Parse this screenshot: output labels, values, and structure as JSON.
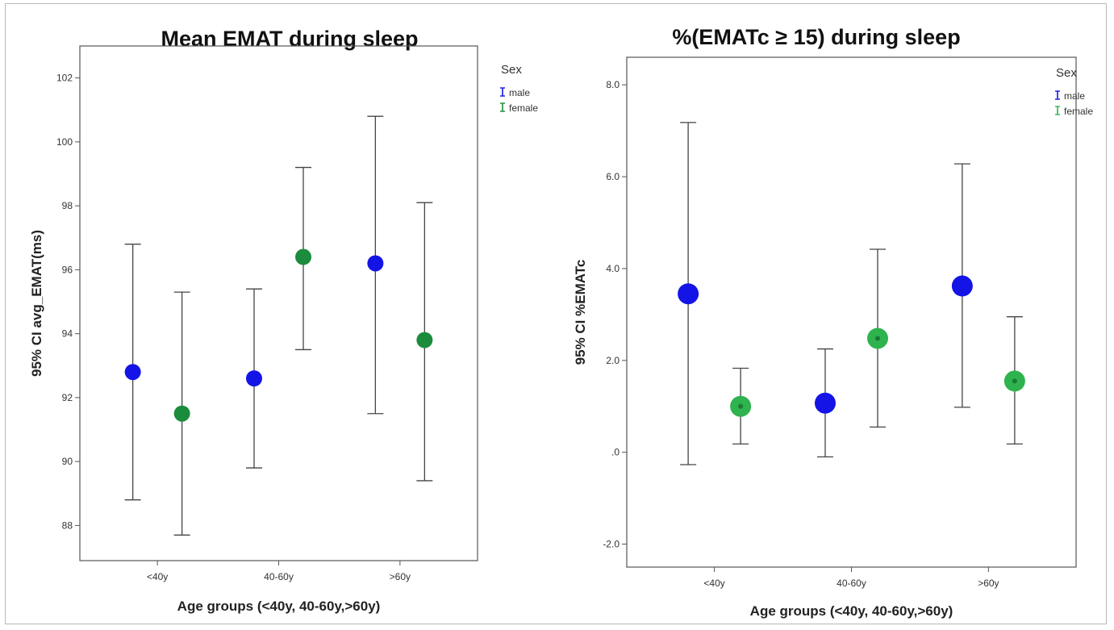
{
  "chart_data": [
    {
      "type": "scatter",
      "title": "Mean EMAT during sleep",
      "xlabel": "Age groups (<40y, 40-60y,>60y)",
      "ylabel": "95% CI avg_EMAT(ms)",
      "categories": [
        "<40y",
        "40-60y",
        ">60y"
      ],
      "yticks": [
        88,
        90,
        92,
        94,
        96,
        98,
        100,
        102
      ],
      "ylim": [
        86.9,
        103
      ],
      "y_tick_decimals": 0,
      "legend": {
        "title": "Sex",
        "placement": "top-right"
      },
      "grid": false,
      "series": [
        {
          "name": "male",
          "color": "#1414e6",
          "means": [
            92.8,
            92.6,
            96.2
          ],
          "lower": [
            88.8,
            89.8,
            91.5
          ],
          "upper": [
            96.8,
            95.4,
            100.8
          ]
        },
        {
          "name": "female",
          "color": "#1a8c3c",
          "means": [
            91.5,
            96.4,
            93.8
          ],
          "lower": [
            87.7,
            93.5,
            89.4
          ],
          "upper": [
            95.3,
            99.2,
            98.1
          ]
        }
      ]
    },
    {
      "type": "scatter",
      "title": "%(EMATc ≥ 15) during sleep",
      "xlabel": "Age groups (<40y, 40-60y,>60y)",
      "ylabel": "95% CI %EMATc",
      "categories": [
        "<40y",
        "40-60y",
        ">60y"
      ],
      "yticks": [
        -2.0,
        0.0,
        2.0,
        4.0,
        6.0,
        8.0
      ],
      "ytick_labels": [
        "-2.0",
        ".0",
        "2.0",
        "4.0",
        "6.0",
        "8.0"
      ],
      "ylim": [
        -2.5,
        8.6
      ],
      "y_tick_decimals": 1,
      "legend": {
        "title": "Sex",
        "placement": "top-right"
      },
      "grid": false,
      "series": [
        {
          "name": "male",
          "color": "#1414e6",
          "means": [
            3.45,
            1.07,
            3.62
          ],
          "lower": [
            -0.27,
            -0.1,
            0.98
          ],
          "upper": [
            7.18,
            2.25,
            6.28
          ]
        },
        {
          "name": "female",
          "color": "#2eb34e",
          "means": [
            1.0,
            2.48,
            1.55
          ],
          "lower": [
            0.18,
            0.55,
            0.18
          ],
          "upper": [
            1.83,
            4.42,
            2.95
          ]
        }
      ]
    }
  ]
}
